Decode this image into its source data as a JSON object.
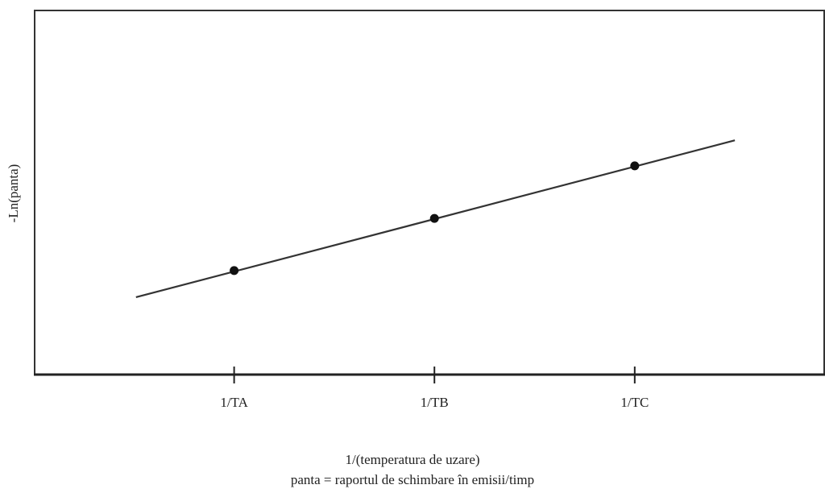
{
  "chart_data": {
    "type": "scatter",
    "ylabel": "-Ln(panta)",
    "xlabel": "1/(temperatura de uzare)",
    "note": "panta = raportul de schimbare în emisii/timp",
    "xlim": [
      0,
      3.95
    ],
    "xticks": [
      {
        "value": 1,
        "label": "1/TA"
      },
      {
        "value": 2,
        "label": "1/TB"
      },
      {
        "value": 3,
        "label": "1/TC"
      }
    ],
    "ylim": [
      0,
      100
    ],
    "series": [
      {
        "color": "#111111",
        "x": [
          1,
          2,
          3
        ],
        "values": [
          28.5,
          42.8,
          57.2
        ]
      }
    ],
    "trend_line": {
      "color": "#333333",
      "x": [
        0.51,
        3.5
      ],
      "values": [
        21.2,
        64.2
      ]
    }
  }
}
